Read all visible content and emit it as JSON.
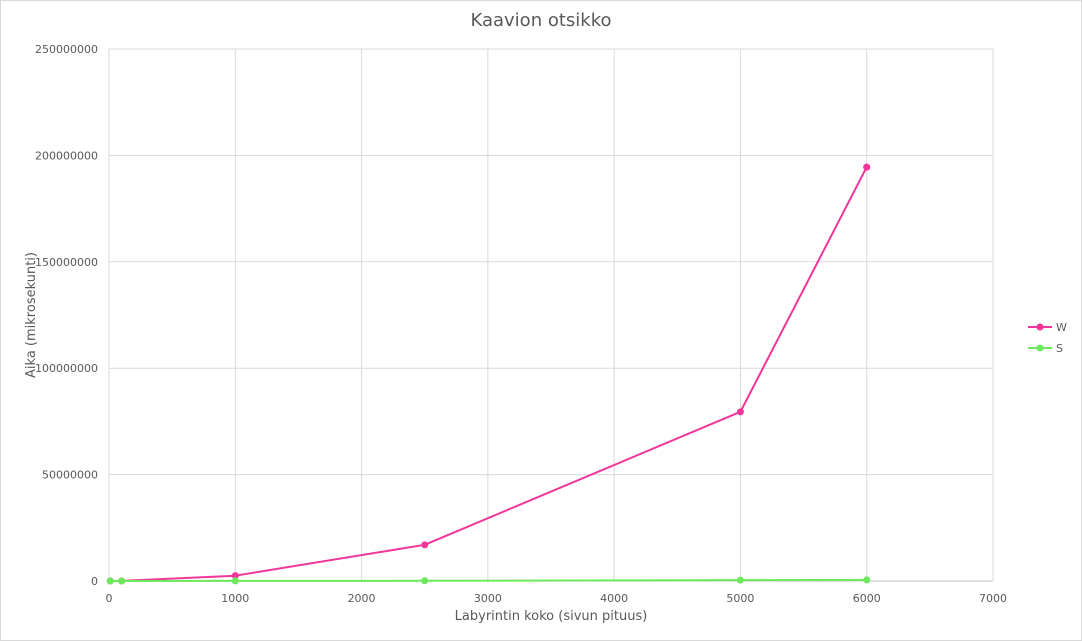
{
  "chart_data": {
    "type": "line",
    "title": "Kaavion otsikko",
    "xlabel": "Labyrintin koko (sivun pituus)",
    "ylabel": "Aika (mikrosekunti)",
    "xlim": [
      0,
      7000
    ],
    "ylim": [
      0,
      250000000
    ],
    "xticks": [
      0,
      1000,
      2000,
      3000,
      4000,
      5000,
      6000,
      7000
    ],
    "yticks": [
      0,
      50000000,
      100000000,
      150000000,
      200000000,
      250000000
    ],
    "grid": true,
    "legend_position": "right",
    "series": [
      {
        "name": "W",
        "color": "#f0369a",
        "x": [
          10,
          100,
          1000,
          2500,
          5000,
          6000
        ],
        "y": [
          100,
          50000,
          2500000,
          17000000,
          79500000,
          194500000
        ]
      },
      {
        "name": "S",
        "color": "#6be85c",
        "x": [
          10,
          100,
          1000,
          2500,
          5000,
          6000
        ],
        "y": [
          10,
          1000,
          50000,
          100000,
          400000,
          500000
        ]
      }
    ]
  }
}
